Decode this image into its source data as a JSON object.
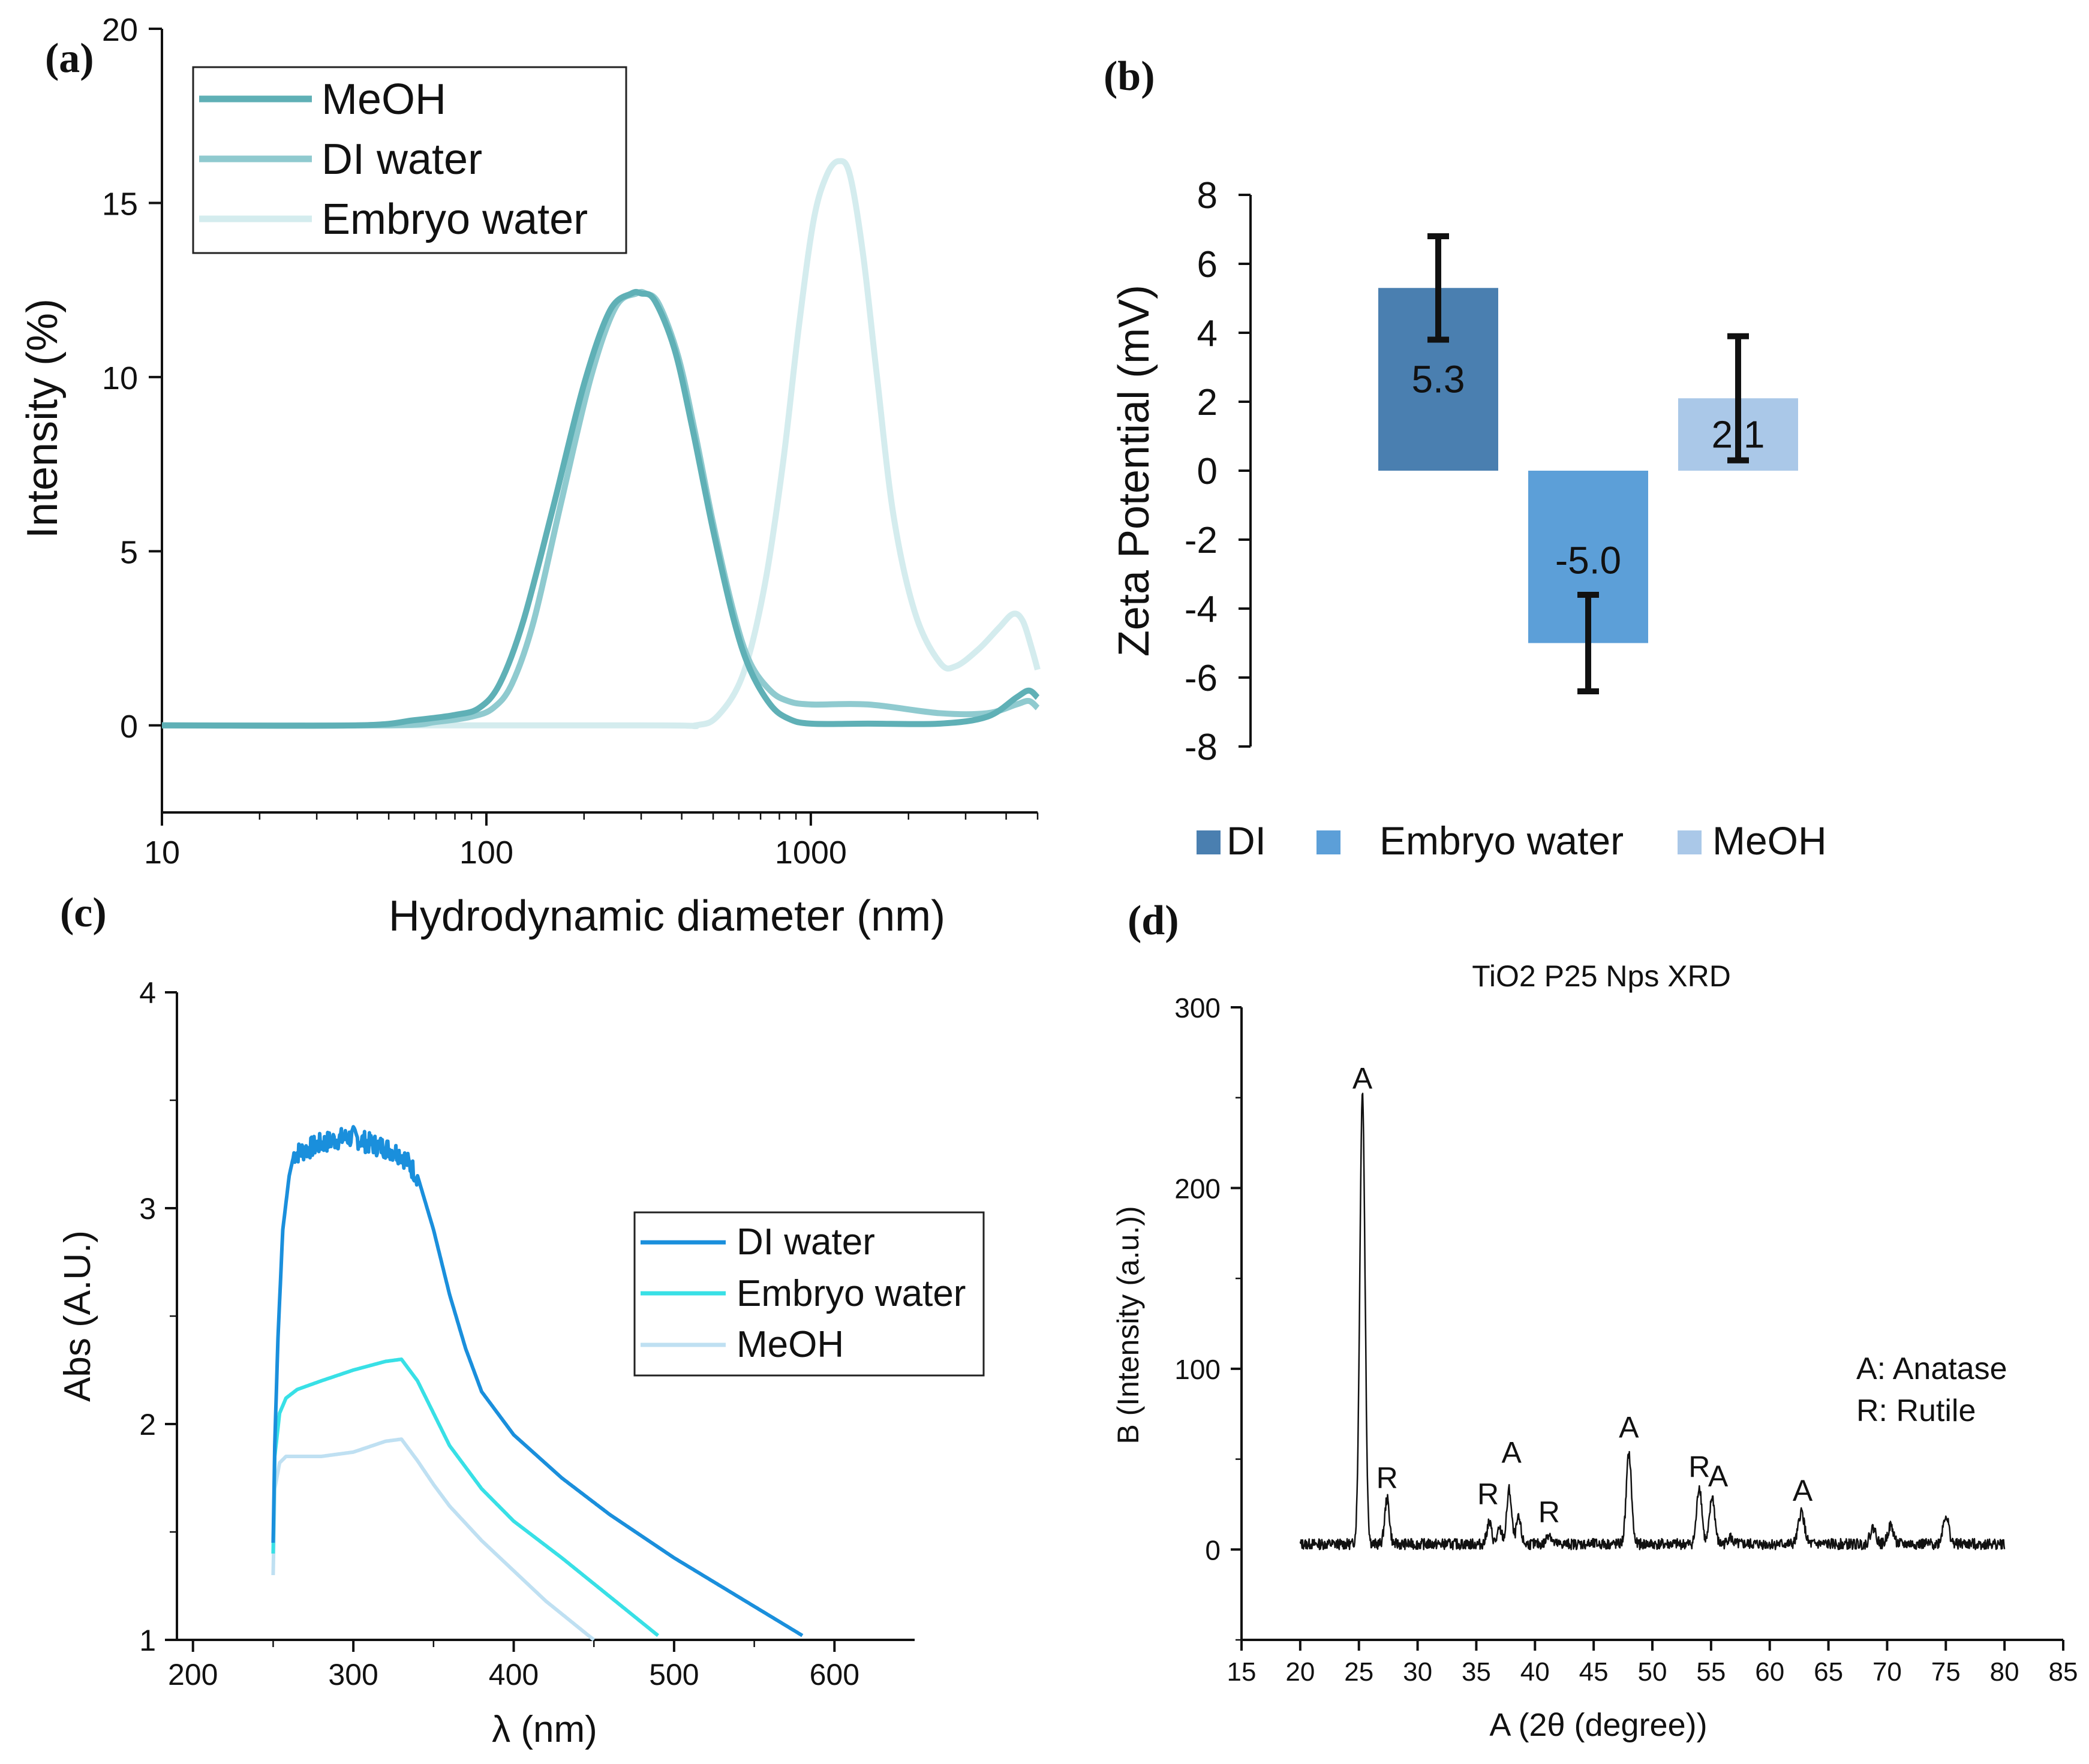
{
  "chart_data": [
    {
      "panel": "(a)",
      "type": "line",
      "xscale": "log",
      "xlim": [
        10,
        5000
      ],
      "ylim": [
        -2.5,
        20
      ],
      "xlabel": "Hydrodynamic diameter (nm)",
      "ylabel": "Intensity (%)",
      "xticks": [
        10,
        100,
        1000
      ],
      "xtick_labels": [
        "10",
        "100",
        "1000"
      ],
      "yticks": [
        0,
        5,
        10,
        15,
        20
      ],
      "ytick_labels": [
        "0",
        "5",
        "10",
        "15",
        "20"
      ],
      "legend_position": "top-left",
      "series": [
        {
          "name": "MeOH",
          "color": "#5fb0b6",
          "x": [
            10,
            40,
            60,
            80,
            95,
            110,
            130,
            160,
            200,
            240,
            280,
            300,
            330,
            380,
            430,
            500,
            580,
            650,
            750,
            850,
            1000,
            1500,
            2500,
            3500,
            4300,
            4700,
            5000
          ],
          "y": [
            0,
            0,
            0.15,
            0.3,
            0.5,
            1.2,
            3,
            6.2,
            9.8,
            11.9,
            12.4,
            12.4,
            12.2,
            10.8,
            8.6,
            5.6,
            3,
            1.6,
            0.6,
            0.2,
            0.05,
            0.05,
            0.05,
            0.25,
            0.8,
            1.0,
            0.8
          ]
        },
        {
          "name": "DI water",
          "color": "#8fcacf",
          "x": [
            10,
            50,
            70,
            90,
            105,
            120,
            140,
            170,
            210,
            250,
            290,
            310,
            340,
            390,
            440,
            500,
            580,
            650,
            750,
            850,
            1000,
            1500,
            2500,
            3500,
            4300,
            4700,
            5000
          ],
          "y": [
            0,
            0,
            0.1,
            0.25,
            0.5,
            1.2,
            3,
            6.4,
            10,
            12,
            12.4,
            12.4,
            12.1,
            10.6,
            8.4,
            5.8,
            3.2,
            1.8,
            1.0,
            0.7,
            0.6,
            0.6,
            0.35,
            0.35,
            0.6,
            0.7,
            0.5
          ]
        },
        {
          "name": "Embryo water",
          "color": "#d4ecee",
          "x": [
            10,
            300,
            440,
            520,
            620,
            720,
            820,
            920,
            1020,
            1120,
            1220,
            1320,
            1450,
            1600,
            1800,
            2100,
            2500,
            2800,
            3300,
            3800,
            4200,
            4500,
            4800,
            5000
          ],
          "y": [
            0,
            0,
            0,
            0.3,
            1.5,
            4,
            7.5,
            11.5,
            14.5,
            15.8,
            16.2,
            15.8,
            13.5,
            10,
            6,
            3.2,
            1.8,
            1.7,
            2.2,
            2.8,
            3.2,
            3.0,
            2.2,
            1.6
          ]
        }
      ]
    },
    {
      "panel": "(b)",
      "type": "bar",
      "ylabel": "Zeta Potential (mV)",
      "ylim": [
        -8,
        8
      ],
      "yticks": [
        8,
        6,
        4,
        2,
        0,
        -2,
        -4,
        -6,
        -8
      ],
      "ytick_labels": [
        "8",
        "6",
        "4",
        "2",
        "0",
        "-2",
        "-4",
        "-6",
        "-8"
      ],
      "categories": [
        "DI",
        "Embryo water",
        "MeOH"
      ],
      "values": [
        5.3,
        -5.0,
        2.1
      ],
      "value_labels": [
        "5.3",
        "-5.0",
        "2.1"
      ],
      "errors": [
        1.5,
        1.4,
        1.8
      ],
      "colors": [
        "#4a7fb0",
        "#5c9fd8",
        "#aac8e8"
      ],
      "legend_position": "bottom"
    },
    {
      "panel": "(c)",
      "type": "line",
      "xlim": [
        190,
        650
      ],
      "ylim": [
        1,
        4
      ],
      "xlabel": "λ (nm)",
      "ylabel": "Abs (A.U.)",
      "xticks": [
        200,
        300,
        400,
        500,
        600
      ],
      "xtick_labels": [
        "200",
        "300",
        "400",
        "500",
        "600"
      ],
      "yticks": [
        1,
        2,
        3,
        4
      ],
      "ytick_labels": [
        "1",
        "2",
        "3",
        "4"
      ],
      "legend_position": "right",
      "series": [
        {
          "name": "DI water",
          "color": "#1a8fdc",
          "x": [
            250,
            251,
            253,
            256,
            260,
            263,
            270,
            280,
            290,
            300,
            310,
            320,
            330,
            340,
            350,
            360,
            370,
            380,
            400,
            430,
            460,
            500,
            540,
            580
          ],
          "y": [
            1.45,
            1.9,
            2.4,
            2.9,
            3.15,
            3.25,
            3.27,
            3.3,
            3.32,
            3.33,
            3.3,
            3.28,
            3.25,
            3.15,
            2.9,
            2.6,
            2.35,
            2.15,
            1.95,
            1.75,
            1.58,
            1.38,
            1.2,
            1.02
          ]
        },
        {
          "name": "Embryo water",
          "color": "#38e0e6",
          "x": [
            250,
            251,
            254,
            258,
            265,
            280,
            300,
            320,
            330,
            340,
            350,
            360,
            380,
            400,
            430,
            460,
            490
          ],
          "y": [
            1.4,
            1.85,
            2.05,
            2.12,
            2.16,
            2.2,
            2.25,
            2.29,
            2.3,
            2.2,
            2.05,
            1.9,
            1.7,
            1.55,
            1.38,
            1.2,
            1.02
          ]
        },
        {
          "name": "MeOH",
          "color": "#bfe0f2",
          "x": [
            250,
            251,
            254,
            258,
            265,
            280,
            300,
            320,
            330,
            340,
            350,
            360,
            380,
            400,
            420,
            450
          ],
          "y": [
            1.3,
            1.7,
            1.82,
            1.85,
            1.85,
            1.85,
            1.87,
            1.92,
            1.93,
            1.83,
            1.72,
            1.62,
            1.46,
            1.32,
            1.18,
            1.0
          ]
        }
      ]
    },
    {
      "panel": "(d)",
      "type": "line",
      "title": "TiO2 P25 Nps XRD",
      "xlim": [
        15,
        85
      ],
      "ylim": [
        -50,
        300
      ],
      "xlabel": "A (2θ (degree))",
      "ylabel": "B (Intensity (a.u.))",
      "xticks": [
        15,
        20,
        25,
        30,
        35,
        40,
        45,
        50,
        55,
        60,
        65,
        70,
        75,
        80,
        85
      ],
      "xtick_labels": [
        "15",
        "20",
        "25",
        "30",
        "35",
        "40",
        "45",
        "50",
        "55",
        "60",
        "65",
        "70",
        "75",
        "80",
        "85"
      ],
      "yticks": [
        0,
        100,
        200,
        300
      ],
      "ytick_labels": [
        "0",
        "100",
        "200",
        "300"
      ],
      "series": [
        {
          "name": "TiO2 P25",
          "color": "#111111",
          "x_range": [
            20,
            80
          ],
          "baseline": 3,
          "peaks": [
            {
              "x": 25.3,
              "y": 250,
              "w": 0.22
            },
            {
              "x": 27.4,
              "y": 25,
              "w": 0.2
            },
            {
              "x": 36.1,
              "y": 12,
              "w": 0.2
            },
            {
              "x": 37.0,
              "y": 8,
              "w": 0.2
            },
            {
              "x": 37.8,
              "y": 30,
              "w": 0.2
            },
            {
              "x": 38.6,
              "y": 14,
              "w": 0.2
            },
            {
              "x": 41.2,
              "y": 6,
              "w": 0.2
            },
            {
              "x": 48.0,
              "y": 50,
              "w": 0.22
            },
            {
              "x": 54.0,
              "y": 32,
              "w": 0.22
            },
            {
              "x": 55.1,
              "y": 26,
              "w": 0.22
            },
            {
              "x": 56.6,
              "y": 4,
              "w": 0.2
            },
            {
              "x": 62.7,
              "y": 18,
              "w": 0.25
            },
            {
              "x": 68.8,
              "y": 9,
              "w": 0.25
            },
            {
              "x": 70.3,
              "y": 10,
              "w": 0.25
            },
            {
              "x": 75.0,
              "y": 16,
              "w": 0.25
            }
          ]
        }
      ],
      "annotations": [
        {
          "label": "A",
          "x": 25.3,
          "y": 255
        },
        {
          "label": "R",
          "x": 27.4,
          "y": 34
        },
        {
          "label": "R",
          "x": 36.0,
          "y": 25
        },
        {
          "label": "A",
          "x": 38.0,
          "y": 48
        },
        {
          "label": "R",
          "x": 41.2,
          "y": 15
        },
        {
          "label": "A",
          "x": 48.0,
          "y": 62
        },
        {
          "label": "R",
          "x": 54.0,
          "y": 40
        },
        {
          "label": "A",
          "x": 55.6,
          "y": 35
        },
        {
          "label": "A",
          "x": 62.8,
          "y": 27
        }
      ],
      "legend_text": [
        "A: Anatase",
        "R: Rutile"
      ]
    }
  ]
}
